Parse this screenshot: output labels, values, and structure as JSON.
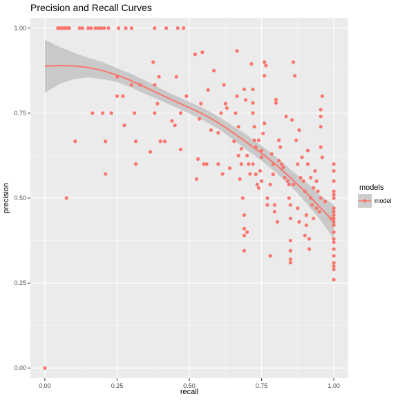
{
  "chart_data": {
    "type": "scatter",
    "title": "Precision and Recall Curves",
    "xlabel": "recall",
    "ylabel": "precision",
    "xlim": [
      -0.05,
      1.05
    ],
    "ylim": [
      -0.03,
      1.03
    ],
    "x_ticks": [
      0.0,
      0.25,
      0.5,
      0.75,
      1.0
    ],
    "x_tick_labels": [
      "0.00",
      "0.25",
      "0.50",
      "0.75",
      "1.00"
    ],
    "y_ticks": [
      0.0,
      0.25,
      0.5,
      0.75,
      1.0
    ],
    "y_tick_labels": [
      "0.00",
      "0.25",
      "0.50",
      "0.75",
      "1.00"
    ],
    "grid": true,
    "legend": {
      "title": "models",
      "entries": [
        "model"
      ],
      "position": "right"
    },
    "colors": {
      "points": "#f8766d",
      "smooth_line": "#f8766d",
      "ribbon": "#bdbdbd",
      "panel": "#ebebeb",
      "grid": "#ffffff"
    },
    "series": [
      {
        "name": "model",
        "points": [
          [
            0.0,
            0.0
          ],
          [
            0.075,
            0.5
          ],
          [
            0.105,
            0.667
          ],
          [
            0.165,
            0.75
          ],
          [
            0.2,
            0.75
          ],
          [
            0.21,
            0.571
          ],
          [
            0.21,
            0.667
          ],
          [
            0.23,
            0.75
          ],
          [
            0.25,
            0.8
          ],
          [
            0.25,
            0.857
          ],
          [
            0.27,
            0.8
          ],
          [
            0.275,
            0.714
          ],
          [
            0.3,
            0.833
          ],
          [
            0.31,
            0.75
          ],
          [
            0.315,
            0.6
          ],
          [
            0.315,
            0.667
          ],
          [
            0.33,
            0.833
          ],
          [
            0.365,
            0.636
          ],
          [
            0.375,
            0.9
          ],
          [
            0.38,
            0.75
          ],
          [
            0.38,
            0.833
          ],
          [
            0.39,
            0.778
          ],
          [
            0.395,
            0.857
          ],
          [
            0.4,
            0.667
          ],
          [
            0.415,
            0.667
          ],
          [
            0.44,
            0.727
          ],
          [
            0.45,
            0.714
          ],
          [
            0.455,
            0.857
          ],
          [
            0.47,
            0.643
          ],
          [
            0.47,
            0.75
          ],
          [
            0.49,
            0.8
          ],
          [
            0.52,
            0.923
          ],
          [
            0.525,
            0.556
          ],
          [
            0.53,
            0.615
          ],
          [
            0.535,
            0.733
          ],
          [
            0.54,
            0.778
          ],
          [
            0.545,
            0.929
          ],
          [
            0.55,
            0.6
          ],
          [
            0.56,
            0.6
          ],
          [
            0.565,
            0.818
          ],
          [
            0.575,
            0.7
          ],
          [
            0.585,
            0.875
          ],
          [
            0.6,
            0.692
          ],
          [
            0.6,
            0.6
          ],
          [
            0.61,
            0.75
          ],
          [
            0.615,
            0.571
          ],
          [
            0.62,
            0.833
          ],
          [
            0.625,
            0.778
          ],
          [
            0.63,
            0.765
          ],
          [
            0.64,
            0.588
          ],
          [
            0.655,
            0.667
          ],
          [
            0.66,
            0.75
          ],
          [
            0.665,
            0.8
          ],
          [
            0.665,
            0.933
          ],
          [
            0.67,
            0.71
          ],
          [
            0.67,
            0.625
          ],
          [
            0.675,
            0.556
          ],
          [
            0.68,
            0.6
          ],
          [
            0.68,
            0.645
          ],
          [
            0.685,
            0.5
          ],
          [
            0.69,
            0.45
          ],
          [
            0.69,
            0.41
          ],
          [
            0.69,
            0.39
          ],
          [
            0.69,
            0.345
          ],
          [
            0.695,
            0.789
          ],
          [
            0.7,
            0.625
          ],
          [
            0.705,
            0.6
          ],
          [
            0.71,
            0.571
          ],
          [
            0.715,
            0.895
          ],
          [
            0.72,
            0.82
          ],
          [
            0.72,
            0.78
          ],
          [
            0.72,
            0.75
          ],
          [
            0.725,
            0.71
          ],
          [
            0.725,
            0.67
          ],
          [
            0.73,
            0.65
          ],
          [
            0.73,
            0.57
          ],
          [
            0.735,
            0.54
          ],
          [
            0.74,
            0.53
          ],
          [
            0.745,
            0.58
          ],
          [
            0.75,
            0.55
          ],
          [
            0.75,
            0.62
          ],
          [
            0.75,
            0.64
          ],
          [
            0.755,
            0.69
          ],
          [
            0.76,
            0.86
          ],
          [
            0.76,
            0.9
          ],
          [
            0.765,
            0.89
          ],
          [
            0.77,
            0.48
          ],
          [
            0.77,
            0.5
          ],
          [
            0.78,
            0.33
          ],
          [
            0.785,
            0.63
          ],
          [
            0.79,
            0.6
          ],
          [
            0.795,
            0.48
          ],
          [
            0.795,
            0.46
          ],
          [
            0.8,
            0.79
          ],
          [
            0.8,
            0.78
          ],
          [
            0.805,
            0.43
          ],
          [
            0.81,
            0.67
          ],
          [
            0.815,
            0.65
          ],
          [
            0.82,
            0.6
          ],
          [
            0.825,
            0.59
          ],
          [
            0.83,
            0.56
          ],
          [
            0.835,
            0.74
          ],
          [
            0.84,
            0.55
          ],
          [
            0.845,
            0.54
          ],
          [
            0.845,
            0.5
          ],
          [
            0.85,
            0.48
          ],
          [
            0.85,
            0.44
          ],
          [
            0.85,
            0.375
          ],
          [
            0.85,
            0.345
          ],
          [
            0.85,
            0.31
          ],
          [
            0.85,
            0.32
          ],
          [
            0.855,
            0.73
          ],
          [
            0.86,
            0.9
          ],
          [
            0.865,
            0.86
          ],
          [
            0.87,
            0.67
          ],
          [
            0.875,
            0.6
          ],
          [
            0.875,
            0.47
          ],
          [
            0.88,
            0.7
          ],
          [
            0.885,
            0.56
          ],
          [
            0.89,
            0.62
          ],
          [
            0.895,
            0.55
          ],
          [
            0.9,
            0.52
          ],
          [
            0.905,
            0.45
          ],
          [
            0.905,
            0.42
          ],
          [
            0.91,
            0.64
          ],
          [
            0.91,
            0.6
          ],
          [
            0.915,
            0.38
          ],
          [
            0.915,
            0.35
          ],
          [
            0.92,
            0.56
          ],
          [
            0.92,
            0.5
          ],
          [
            0.925,
            0.48
          ],
          [
            0.93,
            0.53
          ],
          [
            0.935,
            0.58
          ],
          [
            0.94,
            0.55
          ],
          [
            0.945,
            0.52
          ],
          [
            0.95,
            0.46
          ],
          [
            0.955,
            0.5
          ],
          [
            0.955,
            0.65
          ],
          [
            0.955,
            0.71
          ],
          [
            0.955,
            0.74
          ],
          [
            0.955,
            0.76
          ],
          [
            0.96,
            0.8
          ],
          [
            0.96,
            0.62
          ],
          [
            1.0,
            0.6
          ],
          [
            1.0,
            0.58
          ],
          [
            1.0,
            0.55
          ],
          [
            1.0,
            0.52
          ],
          [
            1.0,
            0.51
          ],
          [
            1.0,
            0.5
          ],
          [
            1.0,
            0.47
          ],
          [
            1.0,
            0.46
          ],
          [
            1.0,
            0.45
          ],
          [
            1.0,
            0.44
          ],
          [
            1.0,
            0.43
          ],
          [
            1.0,
            0.42
          ],
          [
            1.0,
            0.4
          ],
          [
            1.0,
            0.38
          ],
          [
            1.0,
            0.37
          ],
          [
            1.0,
            0.35
          ],
          [
            1.0,
            0.33
          ],
          [
            1.0,
            0.31
          ],
          [
            1.0,
            0.3
          ],
          [
            1.0,
            0.29
          ],
          [
            1.0,
            0.26
          ],
          [
            0.045,
            1.0
          ],
          [
            0.05,
            1.0
          ],
          [
            0.055,
            1.0
          ],
          [
            0.06,
            1.0
          ],
          [
            0.065,
            1.0
          ],
          [
            0.07,
            1.0
          ],
          [
            0.075,
            1.0
          ],
          [
            0.08,
            1.0
          ],
          [
            0.085,
            1.0
          ],
          [
            0.12,
            1.0
          ],
          [
            0.13,
            1.0
          ],
          [
            0.15,
            1.0
          ],
          [
            0.16,
            1.0
          ],
          [
            0.175,
            1.0
          ],
          [
            0.185,
            1.0
          ],
          [
            0.195,
            1.0
          ],
          [
            0.205,
            1.0
          ],
          [
            0.22,
            1.0
          ],
          [
            0.255,
            1.0
          ],
          [
            0.28,
            1.0
          ],
          [
            0.3,
            1.0
          ],
          [
            0.38,
            1.0
          ],
          [
            0.42,
            1.0
          ],
          [
            0.46,
            1.0
          ],
          [
            0.48,
            1.0
          ],
          [
            0.69,
            0.82
          ],
          [
            0.7,
            0.4
          ],
          [
            0.72,
            0.6
          ],
          [
            0.74,
            0.67
          ],
          [
            0.76,
            0.72
          ],
          [
            0.78,
            0.54
          ],
          [
            0.79,
            0.57
          ],
          [
            0.81,
            0.61
          ],
          [
            0.86,
            0.54
          ],
          [
            0.88,
            0.43
          ],
          [
            0.9,
            0.39
          ],
          [
            0.93,
            0.44
          ],
          [
            0.94,
            0.47
          ],
          [
            0.97,
            0.49
          ],
          [
            0.99,
            0.44
          ]
        ]
      }
    ],
    "smooth": {
      "x": [
        0.0,
        0.05,
        0.1,
        0.15,
        0.2,
        0.25,
        0.3,
        0.35,
        0.4,
        0.45,
        0.5,
        0.55,
        0.6,
        0.65,
        0.7,
        0.75,
        0.8,
        0.85,
        0.9,
        0.95,
        1.0
      ],
      "fit": [
        0.888,
        0.89,
        0.889,
        0.884,
        0.875,
        0.862,
        0.845,
        0.825,
        0.805,
        0.785,
        0.766,
        0.746,
        0.722,
        0.693,
        0.663,
        0.632,
        0.598,
        0.56,
        0.52,
        0.475,
        0.43
      ],
      "lower": [
        0.81,
        0.835,
        0.85,
        0.855,
        0.85,
        0.842,
        0.825,
        0.805,
        0.787,
        0.768,
        0.749,
        0.728,
        0.704,
        0.673,
        0.641,
        0.61,
        0.575,
        0.536,
        0.49,
        0.44,
        0.38
      ],
      "upper": [
        0.966,
        0.945,
        0.928,
        0.913,
        0.9,
        0.882,
        0.865,
        0.845,
        0.823,
        0.802,
        0.783,
        0.764,
        0.74,
        0.713,
        0.685,
        0.654,
        0.621,
        0.584,
        0.55,
        0.51,
        0.48
      ]
    }
  }
}
